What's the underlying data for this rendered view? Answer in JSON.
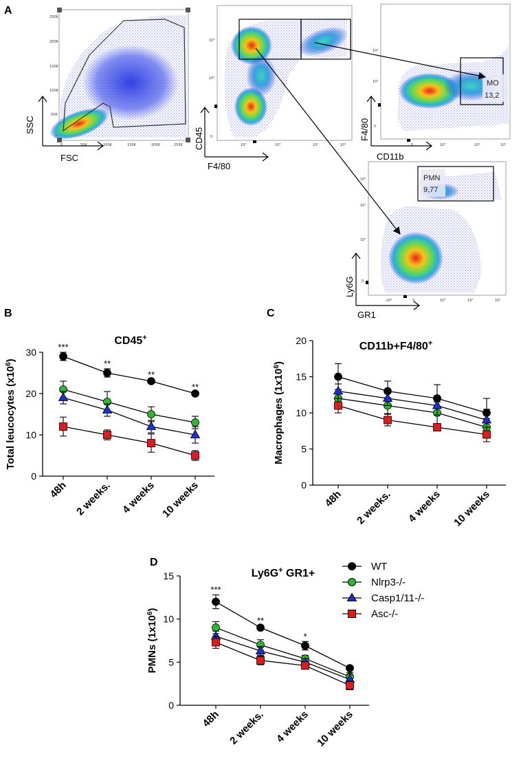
{
  "panels": {
    "A": "A",
    "B": "B",
    "C": "C",
    "D": "D"
  },
  "flow": {
    "plot1": {
      "xlabel": "FSC",
      "ylabel": "SSC",
      "xticks": [
        "0",
        "50K",
        "100K",
        "150K",
        "200K",
        "250K"
      ],
      "yticks": [
        "0",
        "50K",
        "100K",
        "150K",
        "200K",
        "250K"
      ]
    },
    "plot2": {
      "xlabel": "F4/80",
      "ylabel": "CD45"
    },
    "plot3": {
      "xlabel": "CD11b",
      "ylabel": "F4/80",
      "gate_name": "MO",
      "gate_value": "13,2"
    },
    "plot4": {
      "xlabel": "GR1",
      "ylabel": "Ly6G",
      "gate_name": "PMN",
      "gate_value": "9,77"
    }
  },
  "colors": {
    "WT": "#000000",
    "Nlrp3": "#2db82d",
    "Casp": "#1f2fd6",
    "Asc": "#e01b1b"
  },
  "legend": [
    "WT",
    "Nlrp3-/-",
    "Casp1/11-/-",
    "Asc-/-"
  ],
  "chart_data": [
    {
      "type": "line",
      "panel": "B",
      "title": "CD45+",
      "title_main": "CD45",
      "title_sup": "+",
      "ylabel": "Total leucocytes (x10",
      "ylabel_sup": "6",
      "ylabel_end": ")",
      "categories": [
        "48h",
        "2 weeks.",
        "4 weeks",
        "10 weeks"
      ],
      "ylim": [
        0,
        30
      ],
      "yticks": [
        0,
        10,
        20,
        30
      ],
      "significance": [
        "***",
        "**",
        "**",
        "**"
      ],
      "series": [
        {
          "name": "WT",
          "marker": "circle",
          "values": [
            29,
            25,
            23,
            20
          ],
          "errors": [
            1,
            1,
            0.3,
            0.3
          ]
        },
        {
          "name": "Nlrp3-/-",
          "marker": "circle",
          "values": [
            21,
            18,
            15,
            13
          ],
          "errors": [
            2,
            2.5,
            1.8,
            1.5
          ]
        },
        {
          "name": "Casp1/11-/-",
          "marker": "triangle",
          "values": [
            19,
            16,
            12,
            10
          ],
          "errors": [
            1.5,
            1.5,
            1.5,
            2
          ]
        },
        {
          "name": "Asc-/-",
          "marker": "square",
          "values": [
            12,
            10,
            8,
            5
          ],
          "errors": [
            2.3,
            1.2,
            2.2,
            1.2
          ]
        }
      ]
    },
    {
      "type": "line",
      "panel": "C",
      "title": "CD11b+F4/80+",
      "title_main": "CD11b+F4/80",
      "title_sup": "+",
      "ylabel": "Macrophages (1x10",
      "ylabel_sup": "6",
      "ylabel_end": ")",
      "categories": [
        "48h",
        "2 weeks.",
        "4 weeks",
        "10 weeks"
      ],
      "ylim": [
        0,
        20
      ],
      "yticks": [
        0,
        5,
        10,
        15,
        20
      ],
      "significance": [
        "",
        "",
        "",
        ""
      ],
      "series": [
        {
          "name": "WT",
          "marker": "circle",
          "values": [
            15,
            13,
            12,
            10
          ],
          "errors": [
            1.8,
            1.4,
            1.9,
            2
          ]
        },
        {
          "name": "Nlrp3-/-",
          "marker": "circle",
          "values": [
            12,
            11,
            10,
            8
          ],
          "errors": [
            1.2,
            1.1,
            1.5,
            1.2
          ]
        },
        {
          "name": "Casp1/11-/-",
          "marker": "triangle",
          "values": [
            13,
            12,
            11,
            9
          ],
          "errors": [
            1,
            1,
            1.3,
            1.5
          ]
        },
        {
          "name": "Asc-/-",
          "marker": "square",
          "values": [
            11,
            9,
            8,
            7
          ],
          "errors": [
            1,
            0.8,
            0.5,
            1
          ]
        }
      ]
    },
    {
      "type": "line",
      "panel": "D",
      "title": "Ly6G+ GR1+",
      "title_main": "Ly6G",
      "title_sup": "+",
      "title_rest": " GR1+",
      "ylabel": "PMNs (1x10",
      "ylabel_sup": "6",
      "ylabel_end": ")",
      "categories": [
        "48h",
        "2 weeks.",
        "4 weeks",
        "10 weeks"
      ],
      "ylim": [
        0,
        15
      ],
      "yticks": [
        0,
        5,
        10,
        15
      ],
      "significance": [
        "***",
        "**",
        "*",
        ""
      ],
      "series": [
        {
          "name": "WT",
          "marker": "circle",
          "values": [
            12,
            9,
            6.9,
            4.3
          ],
          "errors": [
            0.8,
            0.2,
            0.5,
            0.2
          ]
        },
        {
          "name": "Nlrp3-/-",
          "marker": "circle",
          "values": [
            9,
            7,
            5.4,
            3.3
          ],
          "errors": [
            0.7,
            0.6,
            0.4,
            0.5
          ]
        },
        {
          "name": "Casp1/11-/-",
          "marker": "triangle",
          "values": [
            8,
            6.3,
            5,
            3
          ],
          "errors": [
            0.6,
            0.5,
            0.4,
            0.6
          ]
        },
        {
          "name": "Asc-/-",
          "marker": "square",
          "values": [
            7.3,
            5.2,
            4.6,
            2.3
          ],
          "errors": [
            0.7,
            0.5,
            0.3,
            0.5
          ]
        }
      ]
    }
  ]
}
